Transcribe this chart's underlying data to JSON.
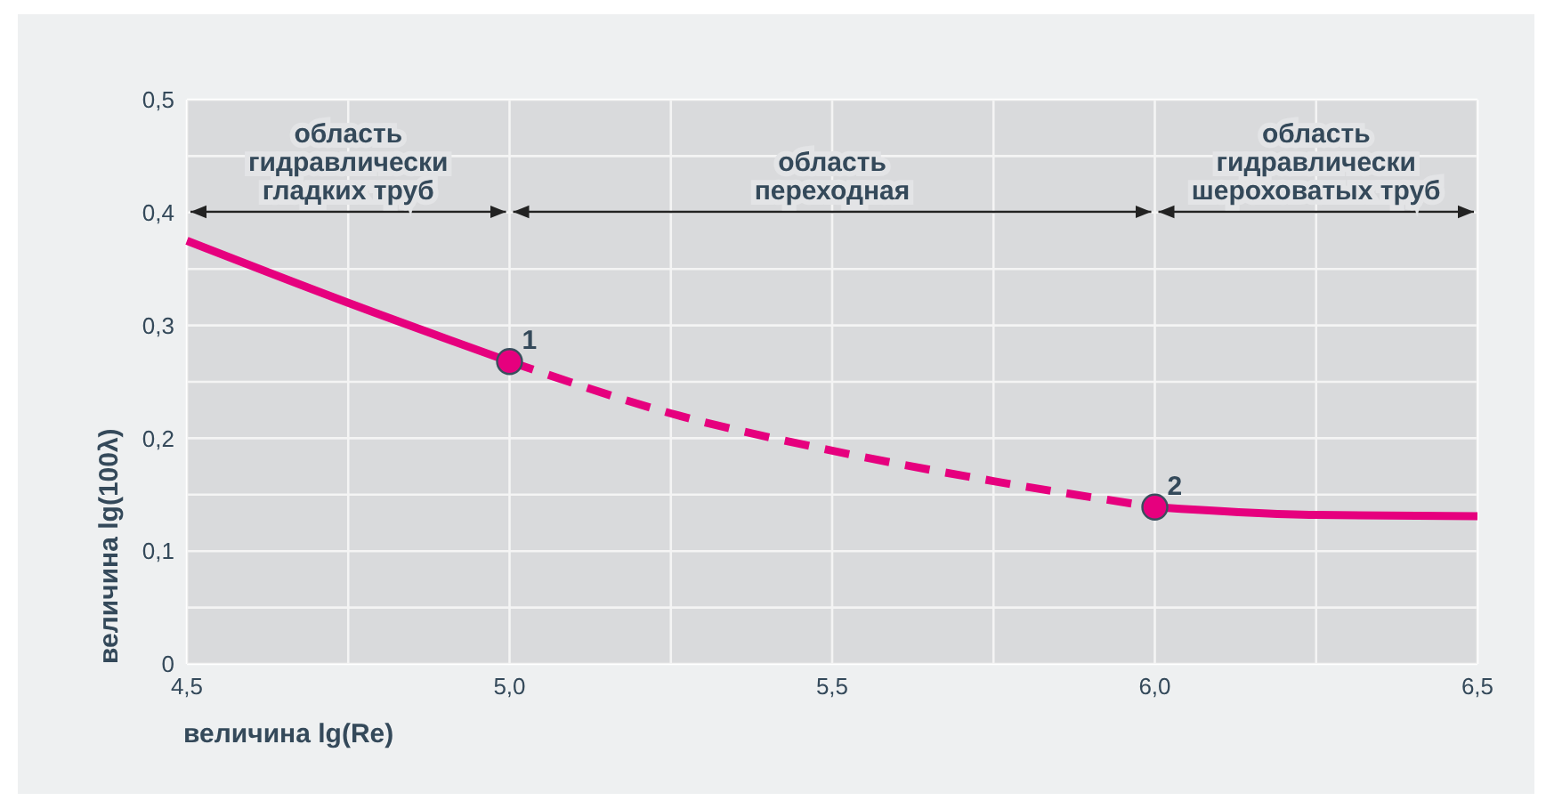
{
  "chart_data": {
    "type": "line",
    "xlabel": "величина lg(Re)",
    "ylabel": "величина lg(100λ)",
    "xlim": [
      4.5,
      6.5
    ],
    "ylim": [
      0,
      0.5
    ],
    "xticks": [
      {
        "value": 4.5,
        "label": "4,5"
      },
      {
        "value": 4.75,
        "label": null
      },
      {
        "value": 5.0,
        "label": "5,0"
      },
      {
        "value": 5.25,
        "label": null
      },
      {
        "value": 5.5,
        "label": "5,5"
      },
      {
        "value": 5.75,
        "label": null
      },
      {
        "value": 6.0,
        "label": "6,0"
      },
      {
        "value": 6.25,
        "label": null
      },
      {
        "value": 6.5,
        "label": "6,5"
      }
    ],
    "yticks": [
      0,
      {
        "value": 0.05,
        "label": null
      },
      {
        "value": 0.1,
        "label": "0,1"
      },
      {
        "value": 0.15,
        "label": null
      },
      {
        "value": 0.2,
        "label": "0,2"
      },
      {
        "value": 0.25,
        "label": null
      },
      {
        "value": 0.3,
        "label": "0,3"
      },
      {
        "value": 0.35,
        "label": null
      },
      {
        "value": 0.4,
        "label": "0,4"
      },
      {
        "value": 0.45,
        "label": null
      },
      {
        "value": 0.5,
        "label": "0,5"
      }
    ],
    "grid": true,
    "series": [
      {
        "line_style": "solid",
        "color": "#e6007e",
        "x": [
          4.5,
          4.75,
          5.0
        ],
        "values": [
          0.375,
          0.32,
          0.268
        ]
      },
      {
        "line_style": "dashed",
        "color": "#e6007e",
        "x": [
          5.0,
          5.25,
          5.5,
          5.75,
          6.0
        ],
        "values": [
          0.268,
          0.222,
          0.189,
          0.162,
          0.139
        ]
      },
      {
        "line_style": "solid",
        "color": "#e6007e",
        "x": [
          6.0,
          6.25,
          6.5
        ],
        "values": [
          0.139,
          0.132,
          0.131
        ]
      },
      {
        "type": "scatter",
        "marker": "circle",
        "color": "#e6007e",
        "x": [
          5.0,
          6.0
        ],
        "values": [
          0.268,
          0.139
        ]
      }
    ],
    "annotations": [
      {
        "text": "1",
        "x": 5.0,
        "y": 0.268
      },
      {
        "text": "2",
        "x": 6.0,
        "y": 0.139
      }
    ],
    "bands": [
      {
        "axis": "x",
        "from": 4.5,
        "to": 5.0,
        "label": "область\nгидравлически\nгладких труб",
        "color": "#222222"
      },
      {
        "axis": "x",
        "from": 5.0,
        "to": 6.0,
        "label": "область\nпереходная",
        "color": "#222222"
      },
      {
        "axis": "x",
        "from": 6.0,
        "to": 6.5,
        "label": "область\nгидравлически\nшероховатых труб",
        "color": "#222222"
      }
    ]
  }
}
